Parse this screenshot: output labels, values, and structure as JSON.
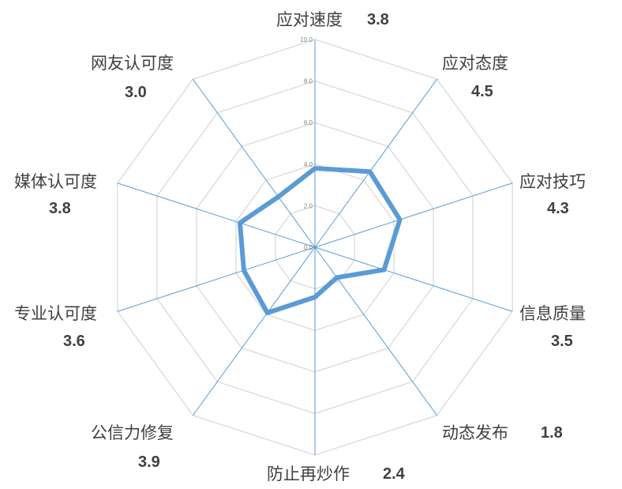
{
  "chart_data": {
    "type": "radar",
    "categories": [
      "应对速度",
      "应对态度",
      "应对技巧",
      "信息质量",
      "动态发布",
      "防止再炒作",
      "公信力修复",
      "专业认可度",
      "媒体认可度",
      "网友认可度"
    ],
    "values": [
      3.8,
      4.5,
      4.3,
      3.5,
      1.8,
      2.4,
      3.9,
      3.6,
      3.8,
      3.0
    ],
    "value_labels": [
      "3.8",
      "4.5",
      "4.3",
      "3.5",
      "1.8",
      "2.4",
      "3.9",
      "3.6",
      "3.8",
      "3.0"
    ],
    "rlim": [
      0,
      10
    ],
    "ticks": [
      "0.0",
      "2.0",
      "4.0",
      "6.0",
      "8.0",
      "10.0"
    ],
    "grid": true,
    "colors": {
      "series": "#5b9bd5",
      "axis": "#5b9bd5",
      "grid": "#d9d9d9"
    }
  }
}
